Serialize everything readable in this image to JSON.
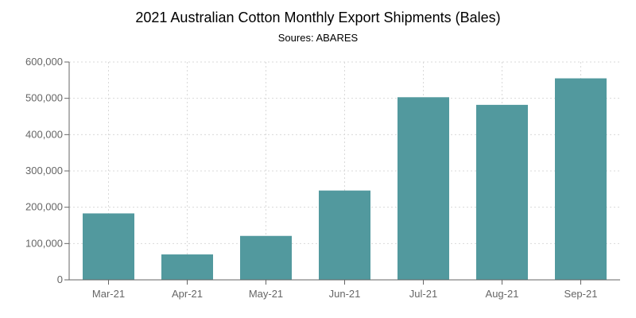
{
  "chart_data": {
    "type": "bar",
    "title": "2021 Australian Cotton Monthly Export Shipments (Bales)",
    "subtitle": "Soures: ABARES",
    "xlabel": "",
    "ylabel": "",
    "categories": [
      "Mar-21",
      "Apr-21",
      "May-21",
      "Jun-21",
      "Jul-21",
      "Aug-21",
      "Sep-21"
    ],
    "values": [
      183000,
      70000,
      121000,
      246000,
      503000,
      482000,
      555000
    ],
    "ylim": [
      0,
      600000
    ],
    "yticks": [
      0,
      100000,
      200000,
      300000,
      400000,
      500000,
      600000
    ],
    "ytick_labels": [
      "0",
      "100,000",
      "200,000",
      "300,000",
      "400,000",
      "500,000",
      "600,000"
    ],
    "bar_color": "#52999e",
    "grid": true,
    "legend": "none"
  }
}
